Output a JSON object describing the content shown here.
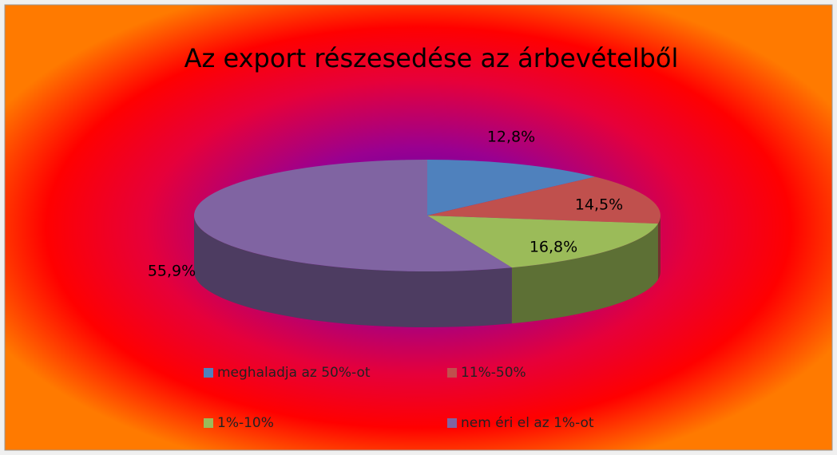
{
  "chart_data": {
    "type": "pie",
    "title": "Az export részesedése az árbevételből",
    "categories": [
      "meghaladja az 50%-ot",
      "11%-50%",
      "1%-10%",
      "nem éri el az 1%-ot"
    ],
    "values": [
      12.8,
      14.5,
      16.8,
      55.9
    ],
    "value_labels": [
      "12,8%",
      "14,5%",
      "16,8%",
      "55,9%"
    ],
    "colors": [
      "#4f81bd",
      "#c0504d",
      "#9bbb59",
      "#8064a2"
    ],
    "legend": "bottom"
  }
}
